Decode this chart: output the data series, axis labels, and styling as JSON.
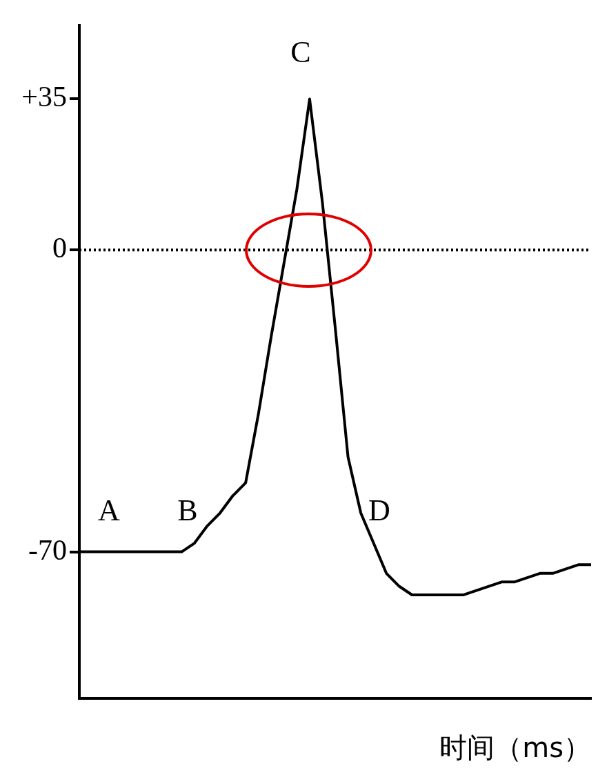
{
  "chart_data": {
    "type": "line",
    "xlabel": "时间（ms）",
    "categories": [
      null,
      null,
      null,
      null,
      null,
      null,
      null,
      null,
      null,
      null,
      null,
      null,
      null,
      null,
      null,
      null,
      null,
      null,
      null,
      null,
      null,
      null,
      null,
      null,
      null,
      null,
      null,
      null,
      null,
      null,
      null,
      null,
      null,
      null,
      null,
      null,
      null,
      null,
      null,
      null,
      null
    ],
    "series": [
      {
        "color": "#000000",
        "values": [
          -70,
          -70,
          -70,
          -70,
          -70,
          -70,
          -70,
          -70,
          -70,
          -68,
          -64,
          -61,
          -57,
          -54,
          -38,
          -20,
          -3,
          14,
          35,
          11,
          -18,
          -48,
          -61,
          -68,
          -75,
          -78,
          -80,
          -80,
          -80,
          -80,
          -80,
          -79,
          -78,
          -77,
          -77,
          -76,
          -75,
          -75,
          -74,
          -73,
          -73
        ]
      }
    ],
    "ylim": [
      -104,
      52
    ],
    "yticks": [
      {
        "value": 35,
        "label": "+35"
      },
      0,
      -70
    ],
    "ref_lines": [
      {
        "axis": "y",
        "value": 0,
        "color": "#000000",
        "line_style": "dotted"
      }
    ],
    "annotations": [
      "A",
      "B",
      "C",
      "D"
    ],
    "grid": false,
    "legend": false,
    "marker": "none",
    "line_style": "solid"
  }
}
